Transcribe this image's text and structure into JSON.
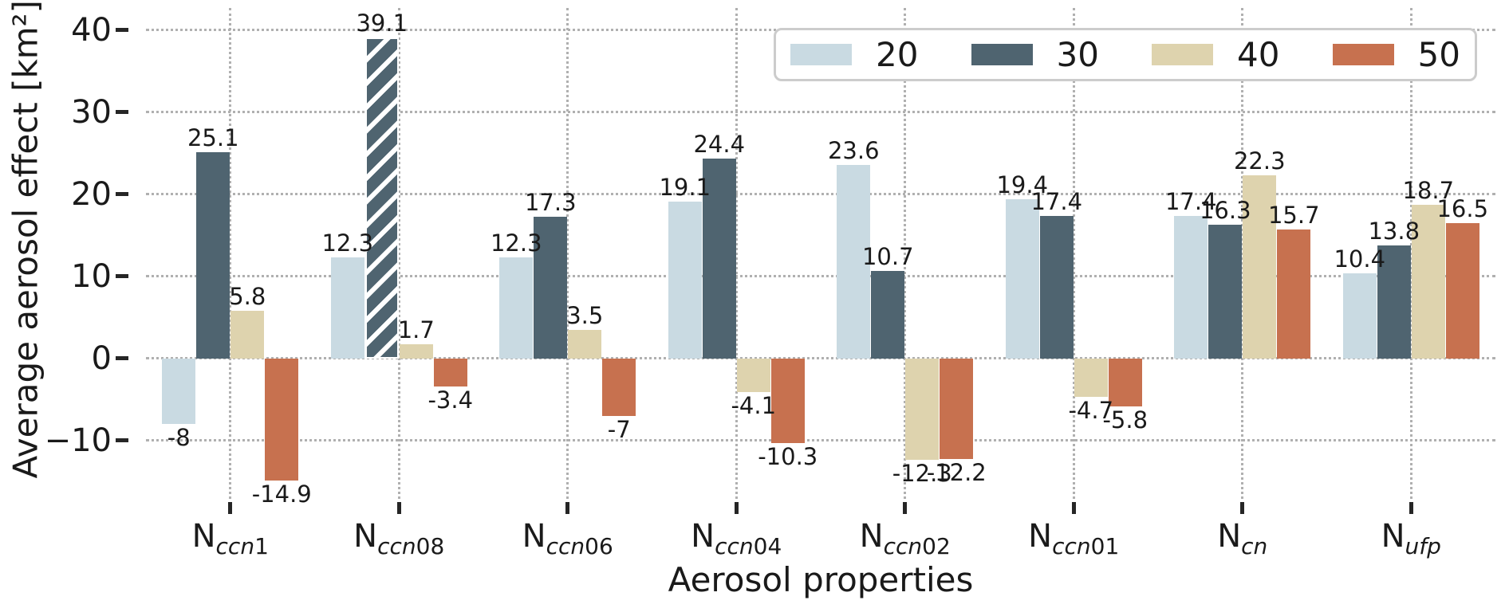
{
  "figure": {
    "background": "#ffffff",
    "text_color": "#1a1a1a",
    "grid_color": "#b0b0b0",
    "tick_color": "#262626",
    "legend_border_color": "#cccccc"
  },
  "chart_data": {
    "type": "bar",
    "title": "",
    "xlabel": "Aerosol properties",
    "ylabel": "Average aerosol effect [km²]",
    "ylim": [
      -17.1,
      42.7
    ],
    "yticks": [
      -10,
      0,
      10,
      20,
      30,
      40
    ],
    "ytick_labels": [
      "−10",
      "0",
      "10",
      "20",
      "30",
      "40"
    ],
    "grid": "dotted gridlines on both axes, drawn below bars, no solid spines",
    "legend_position": "upper right",
    "categories": [
      {
        "base": "N",
        "sub": "ccn1"
      },
      {
        "base": "N",
        "sub": "ccn08"
      },
      {
        "base": "N",
        "sub": "ccn06"
      },
      {
        "base": "N",
        "sub": "ccn04"
      },
      {
        "base": "N",
        "sub": "ccn02"
      },
      {
        "base": "N",
        "sub": "ccn01"
      },
      {
        "base": "N",
        "sub": "cn"
      },
      {
        "base": "N",
        "sub": "ufp"
      }
    ],
    "series": [
      {
        "name": "20",
        "color": "#c9dae2",
        "values": [
          -8,
          12.3,
          12.3,
          19.1,
          23.6,
          19.4,
          17.4,
          10.4
        ],
        "labels": [
          "-8",
          "12.3",
          "12.3",
          "19.1",
          "23.6",
          "19.4",
          "17.4",
          "10.4"
        ]
      },
      {
        "name": "30",
        "color": "#4f6470",
        "values": [
          25.1,
          39.1,
          17.3,
          24.4,
          10.7,
          17.4,
          16.3,
          13.8
        ],
        "labels": [
          "25.1",
          "39.1",
          "17.3",
          "24.4",
          "10.7",
          "17.4",
          "16.3",
          "13.8"
        ],
        "hatched_category_index": 1,
        "hatch": "/"
      },
      {
        "name": "40",
        "color": "#ded3ae",
        "values": [
          5.8,
          1.7,
          3.5,
          -4.1,
          -12.3,
          -4.7,
          22.3,
          18.7
        ],
        "labels": [
          "5.8",
          "1.7",
          "3.5",
          "-4.1",
          "-12.3",
          "-4.7",
          "22.3",
          "18.7"
        ]
      },
      {
        "name": "50",
        "color": "#c7714f",
        "values": [
          -14.9,
          -3.4,
          -7,
          -10.3,
          -12.2,
          -5.8,
          15.7,
          16.5
        ],
        "labels": [
          "-14.9",
          "-3.4",
          "-7",
          "-10.3",
          "-12.2",
          "-5.8",
          "15.7",
          "16.5"
        ]
      }
    ]
  }
}
